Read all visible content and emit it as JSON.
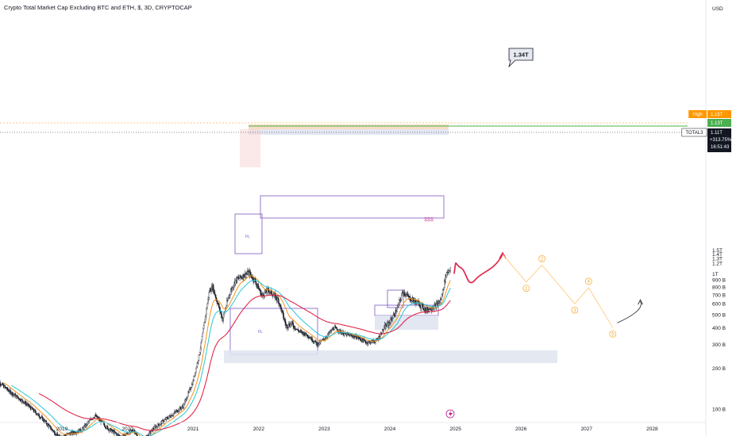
{
  "title": "Crypto Total Market Cap Excluding BTC and ETH, $, 3D, CRYPTOCAP",
  "currency": "USD",
  "chart_data": {
    "type": "candlestick",
    "y_scale": "log",
    "y_ticks": [
      {
        "v": 100,
        "label": "100 B"
      },
      {
        "v": 200,
        "label": "200 B"
      },
      {
        "v": 300,
        "label": "300 B"
      },
      {
        "v": 400,
        "label": "400 B"
      },
      {
        "v": 500,
        "label": "500 B"
      },
      {
        "v": 600,
        "label": "600 B"
      },
      {
        "v": 700,
        "label": "700 B"
      },
      {
        "v": 800,
        "label": "800 B"
      },
      {
        "v": 900,
        "label": "900 B"
      },
      {
        "v": 1000,
        "label": "1T"
      },
      {
        "v": 1200,
        "label": "1.2T"
      },
      {
        "v": 1300,
        "label": "1.3T"
      },
      {
        "v": 1400,
        "label": "1.4T"
      },
      {
        "v": 1500,
        "label": "1.5T"
      }
    ],
    "x_ticks": [
      {
        "t": 2019,
        "label": "2019"
      },
      {
        "t": 2020,
        "label": "2020"
      },
      {
        "t": 2021,
        "label": "2021"
      },
      {
        "t": 2022,
        "label": "2022"
      },
      {
        "t": 2023,
        "label": "2023"
      },
      {
        "t": 2024,
        "label": "2024"
      },
      {
        "t": 2025,
        "label": "2025"
      },
      {
        "t": 2026,
        "label": "2026"
      },
      {
        "t": 2027,
        "label": "2027"
      },
      {
        "t": 2028,
        "label": "2028"
      }
    ],
    "price_keypoints": [
      [
        2018.0,
        165
      ],
      [
        2018.2,
        135
      ],
      [
        2018.45,
        110
      ],
      [
        2018.7,
        85
      ],
      [
        2018.95,
        62
      ],
      [
        2019.3,
        70
      ],
      [
        2019.5,
        90
      ],
      [
        2019.7,
        72
      ],
      [
        2019.9,
        62
      ],
      [
        2020.1,
        70
      ],
      [
        2020.2,
        55
      ],
      [
        2020.4,
        72
      ],
      [
        2020.6,
        85
      ],
      [
        2020.85,
        105
      ],
      [
        2021.0,
        160
      ],
      [
        2021.1,
        260
      ],
      [
        2021.25,
        750
      ],
      [
        2021.3,
        800
      ],
      [
        2021.45,
        460
      ],
      [
        2021.55,
        700
      ],
      [
        2021.65,
        900
      ],
      [
        2021.85,
        1020
      ],
      [
        2021.95,
        880
      ],
      [
        2022.05,
        690
      ],
      [
        2022.15,
        760
      ],
      [
        2022.3,
        640
      ],
      [
        2022.42,
        410
      ],
      [
        2022.5,
        430
      ],
      [
        2022.6,
        380
      ],
      [
        2022.75,
        350
      ],
      [
        2022.9,
        300
      ],
      [
        2023.0,
        330
      ],
      [
        2023.15,
        400
      ],
      [
        2023.3,
        360
      ],
      [
        2023.5,
        340
      ],
      [
        2023.65,
        310
      ],
      [
        2023.8,
        320
      ],
      [
        2023.92,
        400
      ],
      [
        2024.0,
        440
      ],
      [
        2024.1,
        530
      ],
      [
        2024.2,
        740
      ],
      [
        2024.3,
        660
      ],
      [
        2024.45,
        600
      ],
      [
        2024.55,
        540
      ],
      [
        2024.7,
        580
      ],
      [
        2024.78,
        640
      ],
      [
        2024.86,
        1000
      ],
      [
        2024.93,
        1110
      ]
    ],
    "moving_averages": [
      {
        "color": "#f7931a",
        "period": "short"
      },
      {
        "color": "#26c6da",
        "period": "medium"
      },
      {
        "color": "#e0284a",
        "period": "long"
      }
    ],
    "projection_path": [
      [
        2024.98,
        1000
      ],
      [
        2025.08,
        1110
      ],
      [
        2025.25,
        900
      ],
      [
        2025.5,
        900
      ],
      [
        2025.72,
        1390
      ]
    ],
    "wave_path": [
      [
        2025.72,
        1390
      ],
      [
        2026.08,
        870
      ],
      [
        2026.32,
        1160
      ],
      [
        2026.82,
        600
      ],
      [
        2027.03,
        790
      ],
      [
        2027.4,
        400
      ]
    ],
    "wave_labels": [
      {
        "t": 2026.08,
        "v": 870,
        "label": "1"
      },
      {
        "t": 2026.32,
        "v": 1160,
        "label": "2"
      },
      {
        "t": 2026.82,
        "v": 600,
        "label": "3"
      },
      {
        "t": 2027.03,
        "v": 790,
        "label": "4"
      },
      {
        "t": 2027.4,
        "v": 400,
        "label": "5"
      }
    ],
    "target_callout": {
      "label": "1.34T"
    },
    "annotations": [
      {
        "label": "$$$"
      },
      {
        "label": "FL"
      },
      {
        "label": "FL"
      }
    ],
    "price_tags": [
      {
        "label": "High",
        "value": "1.15T",
        "color": "#ff9800"
      },
      {
        "label": "",
        "value": "1.13T",
        "color": "#4caf50"
      },
      {
        "label": "TOTAL3",
        "value": "1.11T",
        "change": "+313.75%",
        "countdown": "16:51:43",
        "color": "#131722"
      }
    ]
  }
}
